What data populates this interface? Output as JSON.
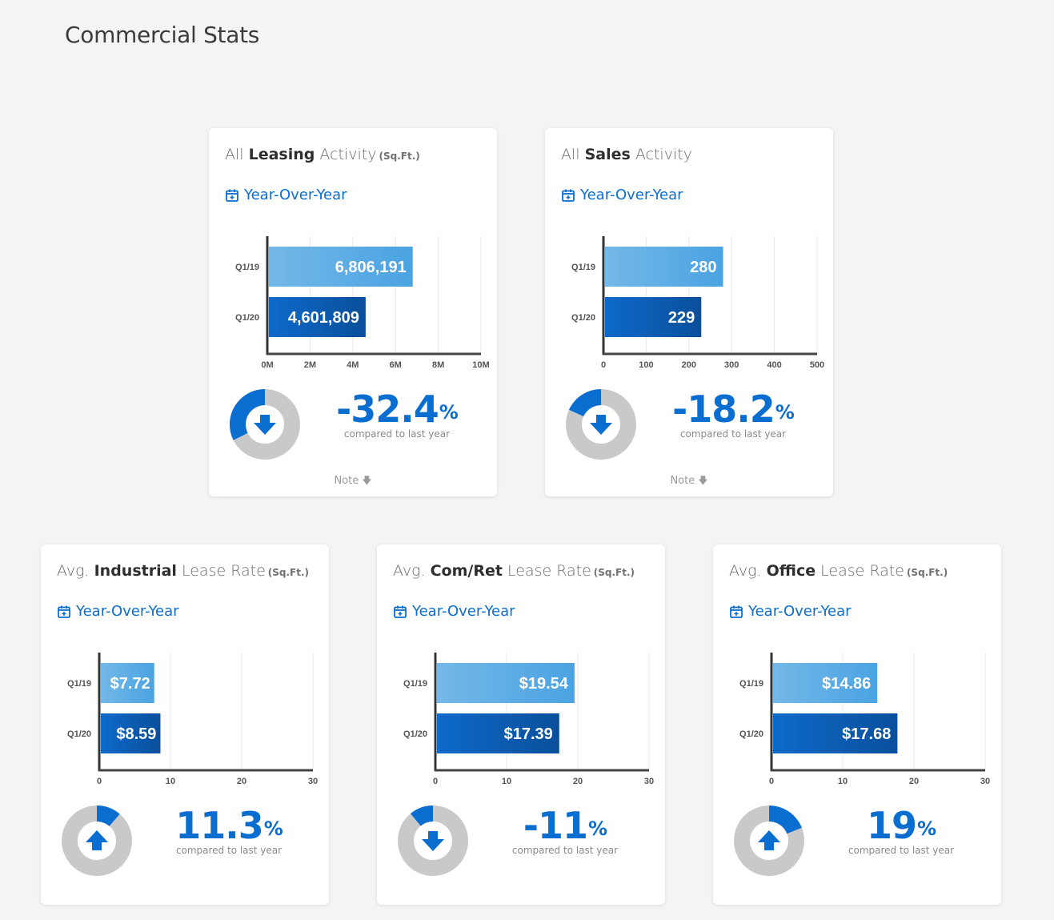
{
  "page_title": "Commercial Stats",
  "colors": {
    "accent": "#0a6ed1",
    "bar_prev_light": "#74b8e8",
    "bar_prev_dark": "#4aa3e2",
    "bar_curr_light": "#0d6ac9",
    "bar_curr_dark": "#0a4f9c",
    "donut_bg": "#c9c9c9"
  },
  "cards": [
    {
      "title_pre": "All ",
      "title_bold": "Leasing",
      "title_post": " Activity",
      "unit": "(Sq.Ft.)",
      "yoy_label": "Year-Over-Year",
      "pct": "-32.4",
      "pct_symbol": "%",
      "pct_sub": "compared to last year",
      "direction": "down",
      "donut_fraction": 0.324,
      "note": "Note",
      "chart_data": {
        "type": "bar",
        "categories": [
          "Q1/19",
          "Q1/20"
        ],
        "values": [
          6806191,
          4601809
        ],
        "labels": [
          "6,806,191",
          "4,601,809"
        ],
        "xlim": [
          0,
          10000000
        ],
        "ticks": [
          0,
          2000000,
          4000000,
          6000000,
          8000000,
          10000000
        ],
        "tick_labels": [
          "0M",
          "2M",
          "4M",
          "6M",
          "8M",
          "10M"
        ]
      }
    },
    {
      "title_pre": "All ",
      "title_bold": "Sales",
      "title_post": " Activity",
      "unit": "",
      "yoy_label": "Year-Over-Year",
      "pct": "-18.2",
      "pct_symbol": "%",
      "pct_sub": "compared to last year",
      "direction": "down",
      "donut_fraction": 0.182,
      "note": "Note",
      "chart_data": {
        "type": "bar",
        "categories": [
          "Q1/19",
          "Q1/20"
        ],
        "values": [
          280,
          229
        ],
        "labels": [
          "280",
          "229"
        ],
        "xlim": [
          0,
          500
        ],
        "ticks": [
          0,
          100,
          200,
          300,
          400,
          500
        ],
        "tick_labels": [
          "0",
          "100",
          "200",
          "300",
          "400",
          "500"
        ]
      }
    },
    {
      "title_pre": "Avg. ",
      "title_bold": "Industrial",
      "title_post": " Lease Rate",
      "unit": "(Sq.Ft.)",
      "yoy_label": "Year-Over-Year",
      "pct": "11.3",
      "pct_symbol": "%",
      "pct_sub": "compared to last year",
      "direction": "up",
      "donut_fraction": 0.113,
      "note": "",
      "chart_data": {
        "type": "bar",
        "categories": [
          "Q1/19",
          "Q1/20"
        ],
        "values": [
          7.72,
          8.59
        ],
        "labels": [
          "$7.72",
          "$8.59"
        ],
        "xlim": [
          0,
          30
        ],
        "ticks": [
          0,
          10,
          20,
          30
        ],
        "tick_labels": [
          "0",
          "10",
          "20",
          "30"
        ]
      }
    },
    {
      "title_pre": "Avg. ",
      "title_bold": "Com/Ret",
      "title_post": " Lease Rate",
      "unit": "(Sq.Ft.)",
      "yoy_label": "Year-Over-Year",
      "pct": "-11",
      "pct_symbol": "%",
      "pct_sub": "compared to last year",
      "direction": "down",
      "donut_fraction": 0.11,
      "note": "",
      "chart_data": {
        "type": "bar",
        "categories": [
          "Q1/19",
          "Q1/20"
        ],
        "values": [
          19.54,
          17.39
        ],
        "labels": [
          "$19.54",
          "$17.39"
        ],
        "xlim": [
          0,
          30
        ],
        "ticks": [
          0,
          10,
          20,
          30
        ],
        "tick_labels": [
          "0",
          "10",
          "20",
          "30"
        ]
      }
    },
    {
      "title_pre": "Avg. ",
      "title_bold": "Office",
      "title_post": " Lease Rate",
      "unit": "(Sq.Ft.)",
      "yoy_label": "Year-Over-Year",
      "pct": "19",
      "pct_symbol": "%",
      "pct_sub": "compared to last year",
      "direction": "up",
      "donut_fraction": 0.19,
      "note": "",
      "chart_data": {
        "type": "bar",
        "categories": [
          "Q1/19",
          "Q1/20"
        ],
        "values": [
          14.86,
          17.68
        ],
        "labels": [
          "$14.86",
          "$17.68"
        ],
        "xlim": [
          0,
          30
        ],
        "ticks": [
          0,
          10,
          20,
          30
        ],
        "tick_labels": [
          "0",
          "10",
          "20",
          "30"
        ]
      }
    }
  ]
}
